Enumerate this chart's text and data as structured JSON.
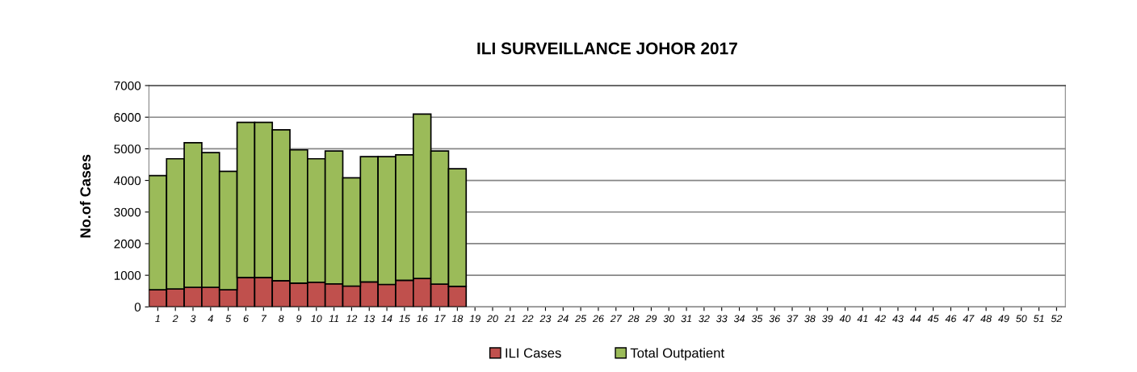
{
  "chart_data": {
    "type": "bar",
    "title": "ILI SURVEILLANCE JOHOR 2017",
    "ylabel": "No.of Cases",
    "categories": [
      "1",
      "2",
      "3",
      "4",
      "5",
      "6",
      "7",
      "8",
      "9",
      "10",
      "11",
      "12",
      "13",
      "14",
      "15",
      "16",
      "17",
      "18",
      "19",
      "20",
      "21",
      "22",
      "23",
      "24",
      "25",
      "26",
      "27",
      "28",
      "29",
      "30",
      "31",
      "32",
      "33",
      "34",
      "35",
      "36",
      "37",
      "38",
      "39",
      "40",
      "41",
      "42",
      "43",
      "44",
      "45",
      "46",
      "47",
      "48",
      "49",
      "50",
      "51",
      "52"
    ],
    "stacked": true,
    "series": [
      {
        "name": "ILI Cases",
        "color": "#c0504d",
        "values": [
          540,
          570,
          620,
          620,
          540,
          930,
          930,
          830,
          750,
          780,
          730,
          660,
          790,
          710,
          840,
          900,
          720,
          650,
          null,
          null,
          null,
          null,
          null,
          null,
          null,
          null,
          null,
          null,
          null,
          null,
          null,
          null,
          null,
          null,
          null,
          null,
          null,
          null,
          null,
          null,
          null,
          null,
          null,
          null,
          null,
          null,
          null,
          null,
          null,
          null,
          null,
          null
        ]
      },
      {
        "name": "Total Outpatient",
        "color": "#9bbb59",
        "values": [
          3610,
          4115,
          4570,
          4260,
          3745,
          4905,
          4905,
          4770,
          4215,
          3905,
          4200,
          3420,
          3960,
          4040,
          3970,
          5200,
          4210,
          3720,
          null,
          null,
          null,
          null,
          null,
          null,
          null,
          null,
          null,
          null,
          null,
          null,
          null,
          null,
          null,
          null,
          null,
          null,
          null,
          null,
          null,
          null,
          null,
          null,
          null,
          null,
          null,
          null,
          null,
          null,
          null,
          null,
          null,
          null
        ]
      }
    ],
    "ylim": [
      0,
      7000
    ],
    "yticks": [
      0,
      1000,
      2000,
      3000,
      4000,
      5000,
      6000,
      7000
    ],
    "grid": "y",
    "legend": "bottom"
  }
}
